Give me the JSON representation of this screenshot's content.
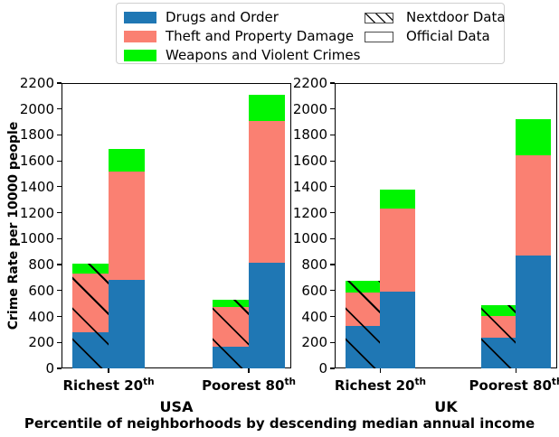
{
  "figure": {
    "ylabel": "Crime Rate per 10000 people",
    "xlabel": "Percentile of neighborhoods by descending median annual income",
    "background": "#ffffff"
  },
  "legend": {
    "position": "upper center outside plot",
    "series": [
      {
        "label": "Drugs and Order",
        "color": "#1f77b4"
      },
      {
        "label": "Theft and Property Damage",
        "color": "#fa8072"
      },
      {
        "label": "Weapons and Violent Crimes",
        "color": "#00f500"
      }
    ],
    "styles": [
      {
        "label": "Nextdoor Data",
        "hatch": true
      },
      {
        "label": "Official Data",
        "hatch": false
      }
    ]
  },
  "chart_data": [
    {
      "type": "bar",
      "stacked": true,
      "title": "USA",
      "categories": [
        {
          "base": "Richest 20",
          "sup": "th"
        },
        {
          "base": "Poorest 80",
          "sup": "th"
        }
      ],
      "ylim": [
        0,
        2200
      ],
      "yticks": [
        0,
        200,
        400,
        600,
        800,
        1000,
        1200,
        1400,
        1600,
        1800,
        2000,
        2200
      ],
      "grid": false,
      "groups": [
        {
          "name": "Nextdoor Data",
          "hatch": true,
          "series": [
            {
              "name": "Drugs and Order",
              "values": [
                275,
                165
              ]
            },
            {
              "name": "Theft and Property Damage",
              "values": [
                455,
                310
              ]
            },
            {
              "name": "Weapons and Violent Crimes",
              "values": [
                75,
                55
              ]
            }
          ],
          "totals": [
            805,
            530
          ]
        },
        {
          "name": "Official Data",
          "hatch": false,
          "series": [
            {
              "name": "Drugs and Order",
              "values": [
                680,
                815
              ]
            },
            {
              "name": "Theft and Property Damage",
              "values": [
                840,
                1090
              ]
            },
            {
              "name": "Weapons and Violent Crimes",
              "values": [
                170,
                205
              ]
            }
          ],
          "totals": [
            1690,
            2110
          ]
        }
      ]
    },
    {
      "type": "bar",
      "stacked": true,
      "title": "UK",
      "categories": [
        {
          "base": "Richest 20",
          "sup": "th"
        },
        {
          "base": "Poorest 80",
          "sup": "th"
        }
      ],
      "ylim": [
        0,
        2200
      ],
      "yticks": [
        0,
        200,
        400,
        600,
        800,
        1000,
        1200,
        1400,
        1600,
        1800,
        2000,
        2200
      ],
      "grid": false,
      "groups": [
        {
          "name": "Nextdoor Data",
          "hatch": true,
          "series": [
            {
              "name": "Drugs and Order",
              "values": [
                325,
                240
              ]
            },
            {
              "name": "Theft and Property Damage",
              "values": [
                260,
                165
              ]
            },
            {
              "name": "Weapons and Violent Crimes",
              "values": [
                90,
                85
              ]
            }
          ],
          "totals": [
            675,
            490
          ]
        },
        {
          "name": "Official Data",
          "hatch": false,
          "series": [
            {
              "name": "Drugs and Order",
              "values": [
                590,
                870
              ]
            },
            {
              "name": "Theft and Property Damage",
              "values": [
                640,
                770
              ]
            },
            {
              "name": "Weapons and Violent Crimes",
              "values": [
                150,
                280
              ]
            }
          ],
          "totals": [
            1380,
            1920
          ]
        }
      ]
    }
  ]
}
